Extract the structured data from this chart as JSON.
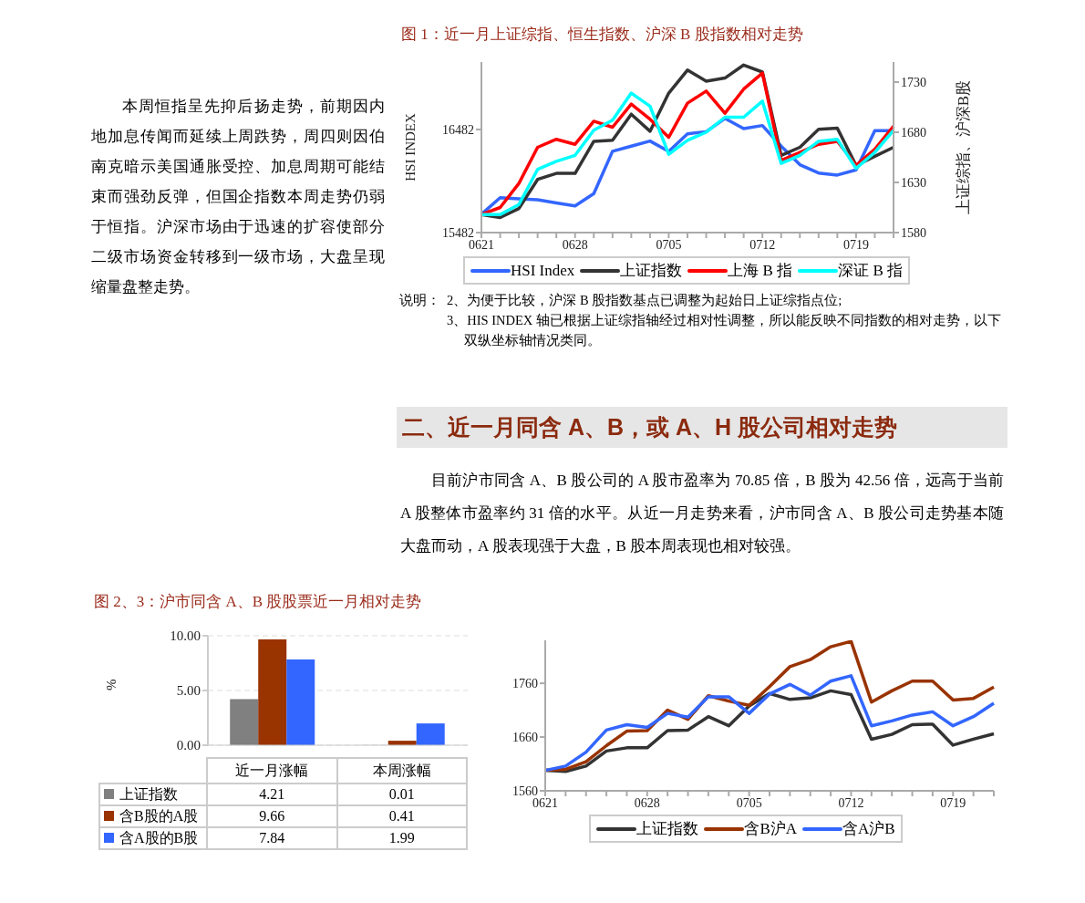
{
  "chart_data": [
    {
      "type": "other",
      "annotations": [
        "本周恒指呈先抑后扬走势，前期因内地加息传闻而延续上周跌势，周四则因伯南克暗示美国通胀受控、加息周期可能结束而强劲反弹，但国企指数本周走势仍弱于恒指。沪深市场由于迅速的扩容使部分二级市场资金转移到一级市场，大盘呈现缩量盘整走势。"
      ]
    },
    {
      "type": "line",
      "title": "图 1：近一月上证综指、恒生指数、沪深 B 股指数相对走势",
      "ylabel": "HSI INDEX",
      "y2label": "上证综指、沪深B股",
      "categories": [
        "0621",
        null,
        null,
        null,
        null,
        "0628",
        null,
        null,
        null,
        null,
        "0705",
        null,
        null,
        null,
        null,
        "0712",
        null,
        null,
        null,
        null,
        "0719",
        null,
        null
      ],
      "series": [
        {
          "name": "HSI Index",
          "color": "#3366ff",
          "values": [
            15660,
            15820,
            15810,
            15800,
            15770,
            15740,
            15860,
            16270,
            16320,
            16370,
            16270,
            16440,
            16460,
            16590,
            16490,
            16520,
            16320,
            16140,
            16060,
            16040,
            16090,
            16470,
            16470
          ]
        },
        {
          "name": "上证指数",
          "color": "#333333",
          "axis": "y2",
          "values": [
            1598,
            1595,
            1604,
            1633,
            1639,
            1639,
            1671,
            1672,
            1698,
            1681,
            1719,
            1742,
            1731,
            1734,
            1747,
            1740,
            1657,
            1665,
            1683,
            1684,
            1647,
            1656,
            1665
          ]
        },
        {
          "name": "上海 B 指",
          "color": "#ff0000",
          "axis": "y2",
          "values": [
            1598,
            1605,
            1629,
            1665,
            1673,
            1668,
            1691,
            1685,
            1708,
            1693,
            1675,
            1709,
            1721,
            1699,
            1723,
            1739,
            1652,
            1660,
            1668,
            1671,
            1647,
            1663,
            1686
          ]
        },
        {
          "name": "深证 B 指",
          "color": "#00ffff",
          "axis": "y2",
          "values": [
            1598,
            1598,
            1608,
            1643,
            1651,
            1657,
            1682,
            1692,
            1719,
            1706,
            1658,
            1672,
            1680,
            1695,
            1695,
            1711,
            1649,
            1657,
            1671,
            1673,
            1644,
            1660,
            1682
          ]
        }
      ],
      "ylim": [
        15482,
        17136
      ],
      "yticks": [
        15482,
        16482
      ],
      "y2lim": [
        1580,
        1750
      ],
      "y2ticks": [
        1580,
        1630,
        1680,
        1730
      ],
      "legend": "bottom",
      "marker": "none",
      "line_style": "solid",
      "annotations": [
        "说明：",
        "2、为便于比较，沪深 B 股指数基点已调整为起始日上证综指点位;",
        "3、HIS INDEX 轴已根据上证综指轴经过相对性调整，所以能反映不同指数的相对走势，以下双纵坐标轴情况类同。"
      ]
    },
    {
      "type": "other",
      "title": "二、近一月同含 A、B，或 A、H 股公司相对走势",
      "annotations": [
        "目前沪市同含 A、B 股公司的 A 股市盈率为 70.85 倍，B 股为 42.56 倍，远高于当前 A 股整体市盈率约 31 倍的水平。从近一月走势来看，沪市同含 A、B 股公司走势基本随大盘而动，A 股表现强于大盘，B 股本周表现也相对较强。"
      ]
    },
    {
      "type": "bar",
      "title": "图 2、3：沪市同含 A、B 股股票近一月相对走势",
      "ylabel": "%",
      "categories": [
        "近一月涨幅",
        "本周涨幅"
      ],
      "series": [
        {
          "name": "上证指数",
          "color": "#808080",
          "values": [
            4.21,
            0.01
          ]
        },
        {
          "name": "含B股的A股",
          "color": "#993300",
          "values": [
            9.66,
            0.41
          ]
        },
        {
          "name": "含A股的B股",
          "color": "#3366ff",
          "values": [
            7.84,
            1.99
          ]
        }
      ],
      "ylim": [
        0,
        10
      ],
      "yticks": [
        {
          "value": 0,
          "label": "0.00"
        },
        {
          "value": 5,
          "label": "5.00"
        },
        {
          "value": 10,
          "label": "10.00"
        }
      ],
      "grid": "y",
      "legend": "bottom",
      "data_labels": true
    },
    {
      "type": "line",
      "categories": [
        "0621",
        null,
        null,
        null,
        null,
        "0628",
        null,
        null,
        null,
        null,
        "0705",
        null,
        null,
        null,
        null,
        "0712",
        null,
        null,
        null,
        null,
        "0719",
        null,
        null
      ],
      "series": [
        {
          "name": "上证指数",
          "color": "#333333",
          "values": [
            1598,
            1596,
            1606,
            1634,
            1640,
            1640,
            1672,
            1673,
            1698,
            1681,
            1718,
            1741,
            1730,
            1733,
            1746,
            1739,
            1656,
            1665,
            1683,
            1684,
            1645,
            1656,
            1666
          ]
        },
        {
          "name": "含B沪A",
          "color": "#993300",
          "values": [
            1598,
            1600,
            1614,
            1644,
            1671,
            1672,
            1710,
            1693,
            1737,
            1727,
            1719,
            1754,
            1791,
            1804,
            1828,
            1838,
            1725,
            1746,
            1764,
            1764,
            1729,
            1732,
            1753
          ]
        },
        {
          "name": "含A沪B",
          "color": "#3366ff",
          "values": [
            1598,
            1606,
            1632,
            1673,
            1683,
            1678,
            1704,
            1697,
            1735,
            1735,
            1704,
            1740,
            1758,
            1738,
            1764,
            1774,
            1681,
            1690,
            1701,
            1707,
            1681,
            1698,
            1723
          ]
        }
      ],
      "ylim": [
        1560,
        1840
      ],
      "yticks": [
        1560,
        1660,
        1760
      ],
      "legend": "bottom",
      "marker": "none",
      "line_style": "solid"
    }
  ]
}
